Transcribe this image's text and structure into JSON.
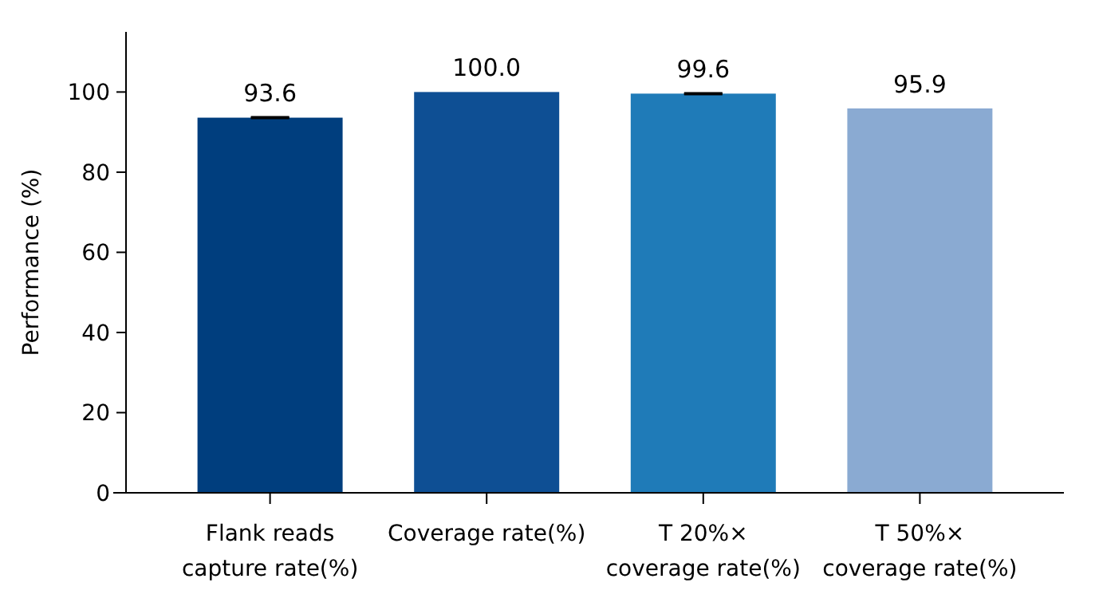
{
  "chart_data": {
    "type": "bar",
    "ylabel": "Performance (%)",
    "categories": [
      "Flank reads\ncapture rate(%)",
      "Coverage rate(%)",
      "T 20%×\ncoverage rate(%)",
      "T 50%×\ncoverage rate(%)"
    ],
    "values": [
      93.6,
      100.0,
      99.6,
      95.9
    ],
    "errors": [
      0.1,
      null,
      0.1,
      null
    ],
    "colors": [
      "#003e7e",
      "#0e4f94",
      "#1f7bb8",
      "#8aaad2"
    ],
    "ylim": [
      0,
      115
    ],
    "yticks": [
      0,
      20,
      40,
      60,
      80,
      100
    ],
    "value_labels": [
      "93.6",
      "100.0",
      "99.6",
      "95.9"
    ],
    "grid": false
  }
}
